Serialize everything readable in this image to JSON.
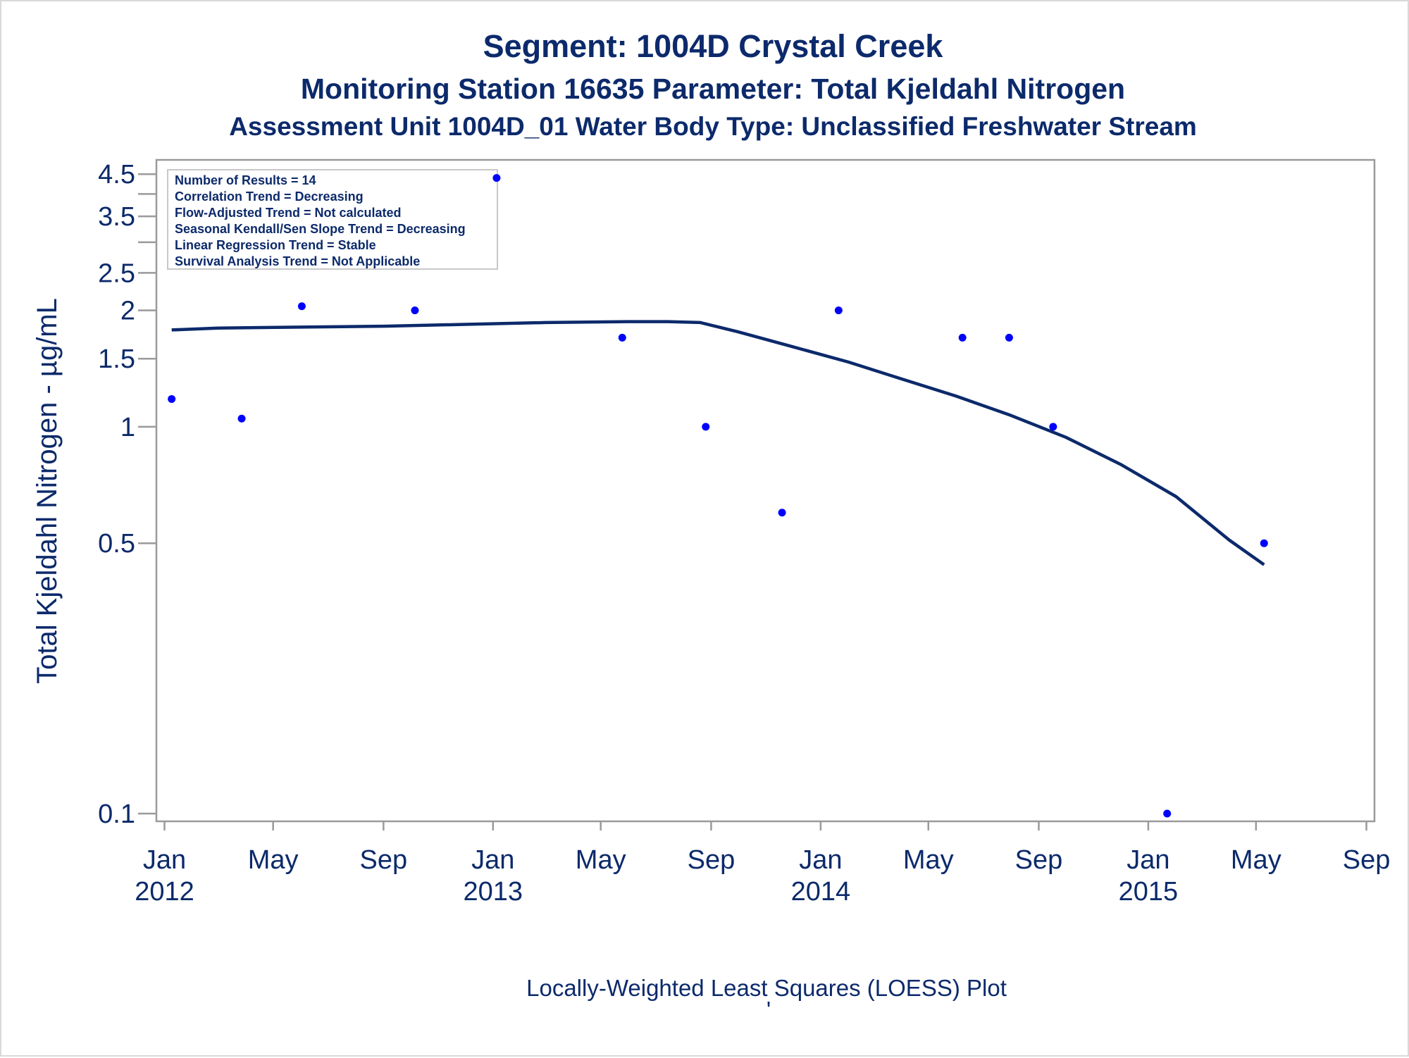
{
  "titles": {
    "line1": "Segment: 1004D  Crystal Creek",
    "line2": "Monitoring Station 16635 Parameter: Total Kjeldahl Nitrogen",
    "line3": "Assessment Unit 1004D_01   Water Body Type: Unclassified Freshwater Stream"
  },
  "stats_box": {
    "lines": [
      "Number of Results = 14",
      "Correlation Trend = Decreasing",
      "Flow-Adjusted Trend = Not calculated",
      "Seasonal Kendall/Sen Slope Trend = Decreasing",
      "Linear Regression Trend = Stable",
      "Survival Analysis Trend = Not Applicable"
    ]
  },
  "footer": {
    "caption": "Locally-Weighted Least Squares (LOESS) Plot",
    "mark": "'"
  },
  "colors": {
    "text": "#0c2a6b",
    "points": "#0000ff",
    "loess": "#0c2a6b",
    "axis": "#9a9a9a"
  },
  "chart_data": {
    "type": "scatter",
    "ylabel": "Total Kjeldahl Nitrogen -  µg/mL",
    "y_scale": "log",
    "ylim": [
      0.1,
      4.6
    ],
    "y_ticks": [
      {
        "value": 0.1,
        "label": "0.1"
      },
      {
        "value": 0.5,
        "label": "0.5"
      },
      {
        "value": 1,
        "label": "1"
      },
      {
        "value": 1.5,
        "label": "1.5"
      },
      {
        "value": 2,
        "label": "2"
      },
      {
        "value": 2.5,
        "label": "2.5"
      },
      {
        "value": 3,
        "label": ""
      },
      {
        "value": 3.5,
        "label": "3.5"
      },
      {
        "value": 4,
        "label": ""
      },
      {
        "value": 4.5,
        "label": "4.5"
      }
    ],
    "xlim": [
      "2011-12-23",
      "2015-09-10"
    ],
    "x_ticks": [
      {
        "date": "2012-01-01",
        "label": [
          "Jan",
          "2012"
        ]
      },
      {
        "date": "2012-05-01",
        "label": [
          "May",
          ""
        ]
      },
      {
        "date": "2012-09-01",
        "label": [
          "Sep",
          ""
        ]
      },
      {
        "date": "2013-01-01",
        "label": [
          "Jan",
          "2013"
        ]
      },
      {
        "date": "2013-05-01",
        "label": [
          "May",
          ""
        ]
      },
      {
        "date": "2013-09-01",
        "label": [
          "Sep",
          ""
        ]
      },
      {
        "date": "2014-01-01",
        "label": [
          "Jan",
          "2014"
        ]
      },
      {
        "date": "2014-05-01",
        "label": [
          "May",
          ""
        ]
      },
      {
        "date": "2014-09-01",
        "label": [
          "Sep",
          ""
        ]
      },
      {
        "date": "2015-01-01",
        "label": [
          "Jan",
          "2015"
        ]
      },
      {
        "date": "2015-05-01",
        "label": [
          "May",
          ""
        ]
      },
      {
        "date": "2015-09-01",
        "label": [
          "Sep",
          ""
        ]
      }
    ],
    "points": [
      {
        "date": "2012-01-09",
        "value": 1.18
      },
      {
        "date": "2012-03-27",
        "value": 1.05
      },
      {
        "date": "2012-06-02",
        "value": 2.05
      },
      {
        "date": "2012-10-06",
        "value": 2.0
      },
      {
        "date": "2013-01-05",
        "value": 4.4
      },
      {
        "date": "2013-05-25",
        "value": 1.7
      },
      {
        "date": "2013-08-26",
        "value": 1.0
      },
      {
        "date": "2013-11-19",
        "value": 0.6
      },
      {
        "date": "2014-01-21",
        "value": 2.0
      },
      {
        "date": "2014-06-08",
        "value": 1.7
      },
      {
        "date": "2014-07-30",
        "value": 1.7
      },
      {
        "date": "2014-09-17",
        "value": 1.0
      },
      {
        "date": "2015-01-22",
        "value": 0.1
      },
      {
        "date": "2015-05-10",
        "value": 0.5
      }
    ],
    "loess": [
      {
        "date": "2012-01-09",
        "value": 1.78
      },
      {
        "date": "2012-03-01",
        "value": 1.8
      },
      {
        "date": "2012-06-01",
        "value": 1.81
      },
      {
        "date": "2012-09-01",
        "value": 1.82
      },
      {
        "date": "2012-12-01",
        "value": 1.84
      },
      {
        "date": "2013-03-01",
        "value": 1.86
      },
      {
        "date": "2013-06-01",
        "value": 1.87
      },
      {
        "date": "2013-07-15",
        "value": 1.87
      },
      {
        "date": "2013-08-20",
        "value": 1.86
      },
      {
        "date": "2013-10-01",
        "value": 1.76
      },
      {
        "date": "2013-12-01",
        "value": 1.61
      },
      {
        "date": "2014-02-01",
        "value": 1.47
      },
      {
        "date": "2014-04-01",
        "value": 1.33
      },
      {
        "date": "2014-06-01",
        "value": 1.2
      },
      {
        "date": "2014-08-01",
        "value": 1.07
      },
      {
        "date": "2014-10-01",
        "value": 0.94
      },
      {
        "date": "2014-12-01",
        "value": 0.8
      },
      {
        "date": "2015-02-01",
        "value": 0.66
      },
      {
        "date": "2015-04-01",
        "value": 0.51
      },
      {
        "date": "2015-05-10",
        "value": 0.44
      }
    ]
  }
}
